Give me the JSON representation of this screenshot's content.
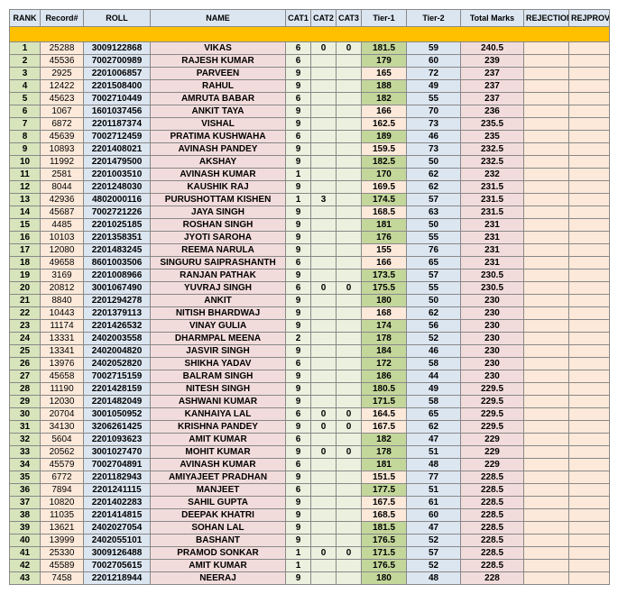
{
  "headers": [
    "RANK",
    "Record#",
    "ROLL",
    "NAME",
    "CAT1",
    "CAT2",
    "CAT3",
    "Tier-1",
    "Tier-2",
    "Total Marks",
    "REJECTION",
    "REJPROV"
  ],
  "col_classes": [
    "col-rank",
    "col-record",
    "col-roll",
    "col-name",
    "col-cat",
    "col-cat",
    "col-cat",
    "col-tier1",
    "col-tier2",
    "col-total",
    "col-rej",
    "col-rejp"
  ],
  "cell_classes": [
    "rank",
    "rec",
    "roll",
    "name",
    "cat",
    "cat",
    "cat",
    "tier1",
    "tier2",
    "total",
    "rej",
    "rejp"
  ],
  "tier1_highlight_threshold": 170,
  "rows": [
    {
      "rank": 1,
      "rec": 25288,
      "roll": "3009122868",
      "name": "VIKAS",
      "c1": "6",
      "c2": "0",
      "c3": "0",
      "t1": 181.5,
      "t2": 59,
      "tot": 240.5
    },
    {
      "rank": 2,
      "rec": 45536,
      "roll": "7002700989",
      "name": "RAJESH KUMAR",
      "c1": "6",
      "c2": "",
      "c3": "",
      "t1": 179,
      "t2": 60,
      "tot": 239
    },
    {
      "rank": 3,
      "rec": 2925,
      "roll": "2201006857",
      "name": "PARVEEN",
      "c1": "9",
      "c2": "",
      "c3": "",
      "t1": 165,
      "t2": 72,
      "tot": 237
    },
    {
      "rank": 4,
      "rec": 12422,
      "roll": "2201508400",
      "name": "RAHUL",
      "c1": "9",
      "c2": "",
      "c3": "",
      "t1": 188,
      "t2": 49,
      "tot": 237
    },
    {
      "rank": 5,
      "rec": 45623,
      "roll": "7002710449",
      "name": "AMRUTA BABAR",
      "c1": "6",
      "c2": "",
      "c3": "",
      "t1": 182,
      "t2": 55,
      "tot": 237
    },
    {
      "rank": 6,
      "rec": 1067,
      "roll": "1601037456",
      "name": "ANKIT TAYA",
      "c1": "9",
      "c2": "",
      "c3": "",
      "t1": 166,
      "t2": 70,
      "tot": 236
    },
    {
      "rank": 7,
      "rec": 6872,
      "roll": "2201187374",
      "name": "VISHAL",
      "c1": "9",
      "c2": "",
      "c3": "",
      "t1": 162.5,
      "t2": 73,
      "tot": 235.5
    },
    {
      "rank": 8,
      "rec": 45639,
      "roll": "7002712459",
      "name": "PRATIMA KUSHWAHA",
      "c1": "6",
      "c2": "",
      "c3": "",
      "t1": 189,
      "t2": 46,
      "tot": 235
    },
    {
      "rank": 9,
      "rec": 10893,
      "roll": "2201408021",
      "name": "AVINASH PANDEY",
      "c1": "9",
      "c2": "",
      "c3": "",
      "t1": 159.5,
      "t2": 73,
      "tot": 232.5
    },
    {
      "rank": 10,
      "rec": 11992,
      "roll": "2201479500",
      "name": "AKSHAY",
      "c1": "9",
      "c2": "",
      "c3": "",
      "t1": 182.5,
      "t2": 50,
      "tot": 232.5
    },
    {
      "rank": 11,
      "rec": 2581,
      "roll": "2201003510",
      "name": "AVINASH KUMAR",
      "c1": "1",
      "c2": "",
      "c3": "",
      "t1": 170,
      "t2": 62,
      "tot": 232
    },
    {
      "rank": 12,
      "rec": 8044,
      "roll": "2201248030",
      "name": "KAUSHIK RAJ",
      "c1": "9",
      "c2": "",
      "c3": "",
      "t1": 169.5,
      "t2": 62,
      "tot": 231.5
    },
    {
      "rank": 13,
      "rec": 42936,
      "roll": "4802000116",
      "name": "PURUSHOTTAM KISHEN",
      "c1": "1",
      "c2": "3",
      "c3": "",
      "t1": 174.5,
      "t2": 57,
      "tot": 231.5
    },
    {
      "rank": 14,
      "rec": 45687,
      "roll": "7002721226",
      "name": "JAYA SINGH",
      "c1": "9",
      "c2": "",
      "c3": "",
      "t1": 168.5,
      "t2": 63,
      "tot": 231.5
    },
    {
      "rank": 15,
      "rec": 4485,
      "roll": "2201025185",
      "name": "ROSHAN SINGH",
      "c1": "9",
      "c2": "",
      "c3": "",
      "t1": 181,
      "t2": 50,
      "tot": 231
    },
    {
      "rank": 16,
      "rec": 10103,
      "roll": "2201358351",
      "name": "JYOTI SAROHA",
      "c1": "9",
      "c2": "",
      "c3": "",
      "t1": 176,
      "t2": 55,
      "tot": 231
    },
    {
      "rank": 17,
      "rec": 12080,
      "roll": "2201483245",
      "name": "REEMA NARULA",
      "c1": "9",
      "c2": "",
      "c3": "",
      "t1": 155,
      "t2": 76,
      "tot": 231
    },
    {
      "rank": 18,
      "rec": 49658,
      "roll": "8601003506",
      "name": "SINGURU SAIPRASHANTH",
      "c1": "6",
      "c2": "",
      "c3": "",
      "t1": 166,
      "t2": 65,
      "tot": 231
    },
    {
      "rank": 19,
      "rec": 3169,
      "roll": "2201008966",
      "name": "RANJAN PATHAK",
      "c1": "9",
      "c2": "",
      "c3": "",
      "t1": 173.5,
      "t2": 57,
      "tot": 230.5
    },
    {
      "rank": 20,
      "rec": 20812,
      "roll": "3001067490",
      "name": "YUVRAJ SINGH",
      "c1": "6",
      "c2": "0",
      "c3": "0",
      "t1": 175.5,
      "t2": 55,
      "tot": 230.5
    },
    {
      "rank": 21,
      "rec": 8840,
      "roll": "2201294278",
      "name": "ANKIT",
      "c1": "9",
      "c2": "",
      "c3": "",
      "t1": 180,
      "t2": 50,
      "tot": 230
    },
    {
      "rank": 22,
      "rec": 10443,
      "roll": "2201379113",
      "name": "NITISH BHARDWAJ",
      "c1": "9",
      "c2": "",
      "c3": "",
      "t1": 168,
      "t2": 62,
      "tot": 230
    },
    {
      "rank": 23,
      "rec": 11174,
      "roll": "2201426532",
      "name": "VINAY GULIA",
      "c1": "9",
      "c2": "",
      "c3": "",
      "t1": 174,
      "t2": 56,
      "tot": 230
    },
    {
      "rank": 24,
      "rec": 13331,
      "roll": "2402003558",
      "name": "DHARMPAL MEENA",
      "c1": "2",
      "c2": "",
      "c3": "",
      "t1": 178,
      "t2": 52,
      "tot": 230
    },
    {
      "rank": 25,
      "rec": 13341,
      "roll": "2402004820",
      "name": "JASVIR SINGH",
      "c1": "9",
      "c2": "",
      "c3": "",
      "t1": 184,
      "t2": 46,
      "tot": 230
    },
    {
      "rank": 26,
      "rec": 13976,
      "roll": "2402052820",
      "name": "SHIKHA YADAV",
      "c1": "6",
      "c2": "",
      "c3": "",
      "t1": 172,
      "t2": 58,
      "tot": 230
    },
    {
      "rank": 27,
      "rec": 45658,
      "roll": "7002715159",
      "name": "BALRAM SINGH",
      "c1": "9",
      "c2": "",
      "c3": "",
      "t1": 186,
      "t2": 44,
      "tot": 230
    },
    {
      "rank": 28,
      "rec": 11190,
      "roll": "2201428159",
      "name": "NITESH SINGH",
      "c1": "9",
      "c2": "",
      "c3": "",
      "t1": 180.5,
      "t2": 49,
      "tot": 229.5
    },
    {
      "rank": 29,
      "rec": 12030,
      "roll": "2201482049",
      "name": "ASHWANI KUMAR",
      "c1": "9",
      "c2": "",
      "c3": "",
      "t1": 171.5,
      "t2": 58,
      "tot": 229.5
    },
    {
      "rank": 30,
      "rec": 20704,
      "roll": "3001050952",
      "name": "KANHAIYA LAL",
      "c1": "6",
      "c2": "0",
      "c3": "0",
      "t1": 164.5,
      "t2": 65,
      "tot": 229.5
    },
    {
      "rank": 31,
      "rec": 34130,
      "roll": "3206261425",
      "name": "KRISHNA PANDEY",
      "c1": "9",
      "c2": "0",
      "c3": "0",
      "t1": 167.5,
      "t2": 62,
      "tot": 229.5
    },
    {
      "rank": 32,
      "rec": 5604,
      "roll": "2201093623",
      "name": "AMIT KUMAR",
      "c1": "6",
      "c2": "",
      "c3": "",
      "t1": 182,
      "t2": 47,
      "tot": 229
    },
    {
      "rank": 33,
      "rec": 20562,
      "roll": "3001027470",
      "name": "MOHIT KUMAR",
      "c1": "9",
      "c2": "0",
      "c3": "0",
      "t1": 178,
      "t2": 51,
      "tot": 229
    },
    {
      "rank": 34,
      "rec": 45579,
      "roll": "7002704891",
      "name": "AVINASH KUMAR",
      "c1": "6",
      "c2": "",
      "c3": "",
      "t1": 181,
      "t2": 48,
      "tot": 229
    },
    {
      "rank": 35,
      "rec": 6772,
      "roll": "2201182943",
      "name": "AMIYAJEET PRADHAN",
      "c1": "9",
      "c2": "",
      "c3": "",
      "t1": 151.5,
      "t2": 77,
      "tot": 228.5
    },
    {
      "rank": 36,
      "rec": 7894,
      "roll": "2201241115",
      "name": "MANJEET",
      "c1": "6",
      "c2": "",
      "c3": "",
      "t1": 177.5,
      "t2": 51,
      "tot": 228.5
    },
    {
      "rank": 37,
      "rec": 10820,
      "roll": "2201402283",
      "name": "SAHIL GUPTA",
      "c1": "9",
      "c2": "",
      "c3": "",
      "t1": 167.5,
      "t2": 61,
      "tot": 228.5
    },
    {
      "rank": 38,
      "rec": 11035,
      "roll": "2201414815",
      "name": "DEEPAK KHATRI",
      "c1": "9",
      "c2": "",
      "c3": "",
      "t1": 168.5,
      "t2": 60,
      "tot": 228.5
    },
    {
      "rank": 39,
      "rec": 13621,
      "roll": "2402027054",
      "name": "SOHAN LAL",
      "c1": "9",
      "c2": "",
      "c3": "",
      "t1": 181.5,
      "t2": 47,
      "tot": 228.5
    },
    {
      "rank": 40,
      "rec": 13999,
      "roll": "2402055101",
      "name": "BASHANT",
      "c1": "9",
      "c2": "",
      "c3": "",
      "t1": 176.5,
      "t2": 52,
      "tot": 228.5
    },
    {
      "rank": 41,
      "rec": 25330,
      "roll": "3009126488",
      "name": "PRAMOD SONKAR",
      "c1": "1",
      "c2": "0",
      "c3": "0",
      "t1": 171.5,
      "t2": 57,
      "tot": 228.5
    },
    {
      "rank": 42,
      "rec": 45589,
      "roll": "7002705615",
      "name": "AMIT KUMAR",
      "c1": "1",
      "c2": "",
      "c3": "",
      "t1": 176.5,
      "t2": 52,
      "tot": 228.5
    },
    {
      "rank": 43,
      "rec": 7458,
      "roll": "2201218944",
      "name": "NEERAJ",
      "c1": "9",
      "c2": "",
      "c3": "",
      "t1": 180,
      "t2": 48,
      "tot": 228
    }
  ]
}
